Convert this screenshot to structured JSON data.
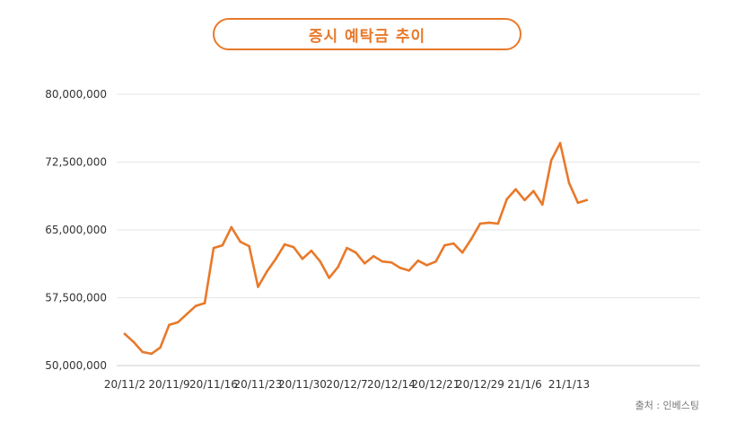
{
  "title": "증시 예탁금 추이",
  "source": "출처 : 인베스팅",
  "colors": {
    "line": "#e8792a",
    "grid": "#e6e6e6",
    "text": "#333333"
  },
  "chart_data": {
    "type": "line",
    "title": "증시 예탁금 추이",
    "xlabel": "",
    "ylabel": "",
    "ylim": [
      50000000,
      80000000
    ],
    "y_ticks": [
      50000000,
      57500000,
      65000000,
      72500000,
      80000000
    ],
    "y_tick_labels": [
      "50,000,000",
      "57,500,000",
      "65,000,000",
      "72,500,000",
      "80,000,000"
    ],
    "x_tick_labels": [
      "20/11/2",
      "20/11/9",
      "20/11/16",
      "20/11/23",
      "20/11/30",
      "20/12/7",
      "20/12/14",
      "20/12/21",
      "20/12/29",
      "21/1/6",
      "21/1/13"
    ],
    "x_tick_index": [
      0,
      5,
      10,
      15,
      20,
      25,
      30,
      35,
      40,
      45,
      50
    ],
    "grid": true,
    "series": [
      {
        "values": [
          53500000,
          52600000,
          51500000,
          51300000,
          52000000,
          54500000,
          54800000,
          55700000,
          56600000,
          56900000,
          63000000,
          63300000,
          65300000,
          63700000,
          63200000,
          58700000,
          60400000,
          61800000,
          63400000,
          63100000,
          61800000,
          62700000,
          61500000,
          59700000,
          60900000,
          63000000,
          62500000,
          61300000,
          62100000,
          61500000,
          61400000,
          60800000,
          60500000,
          61600000,
          61100000,
          61500000,
          63300000,
          63500000,
          62500000,
          64000000,
          65700000,
          65800000,
          65700000,
          68400000,
          69500000,
          68300000,
          69300000,
          67800000,
          72700000,
          74600000,
          70200000,
          68000000,
          68300000
        ]
      }
    ]
  }
}
